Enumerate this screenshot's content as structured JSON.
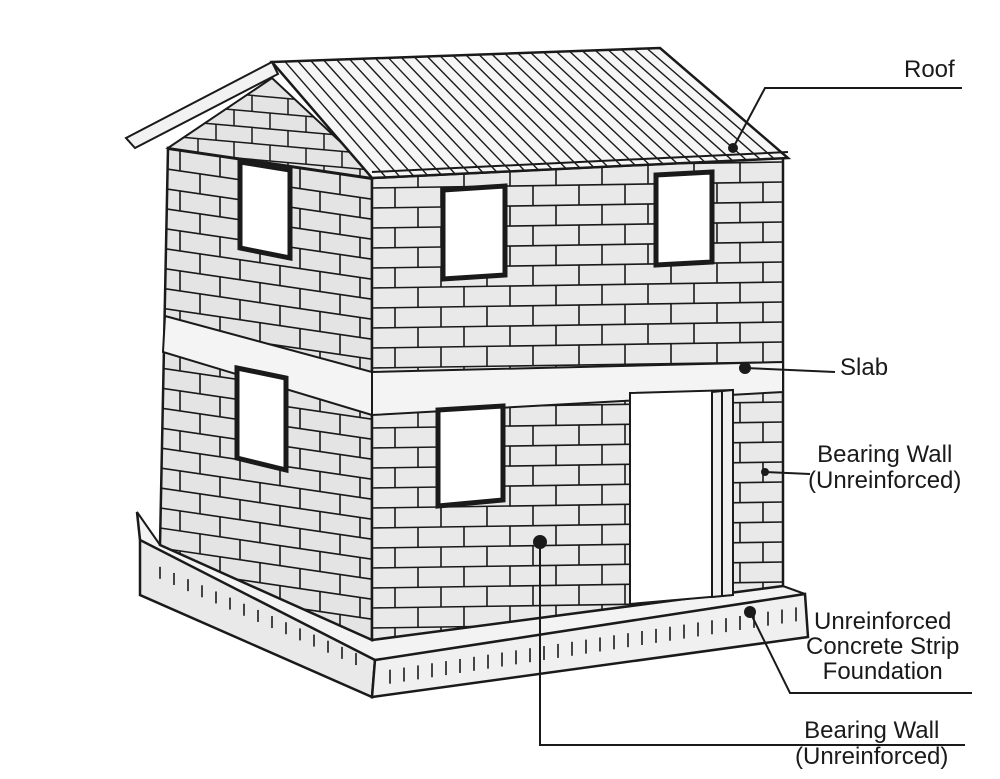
{
  "diagram": {
    "labels": {
      "roof": "Roof",
      "slab": "Slab",
      "bearing_wall_right": {
        "line1": "Bearing Wall",
        "line2": "(Unreinforced)"
      },
      "foundation": {
        "line1": "Unreinforced",
        "line2": "Concrete Strip",
        "line3": "Foundation"
      },
      "bearing_wall_bottom": {
        "line1": "Bearing Wall",
        "line2": "(Unreinforced)"
      }
    },
    "colors": {
      "ink": "#1a1a1a",
      "paper": "#ffffff",
      "wall_tone": "#d6d6d6"
    }
  }
}
